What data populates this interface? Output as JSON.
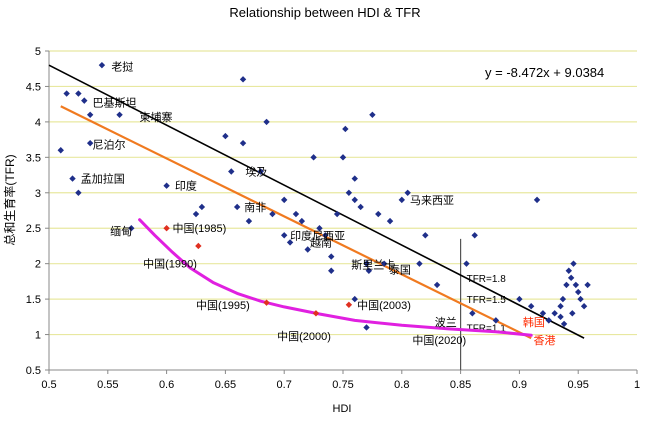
{
  "chart_data": {
    "type": "scatter",
    "title": "Relationship between HDI & TFR",
    "xlabel": "HDI",
    "ylabel": "总和生育率(TFR)",
    "xlim": [
      0.5,
      1.0
    ],
    "ylim": [
      0.5,
      5.0
    ],
    "x_ticks": [
      "0.5",
      "0.55",
      "0.6",
      "0.65",
      "0.7",
      "0.75",
      "0.8",
      "0.85",
      "0.9",
      "0.95",
      "1"
    ],
    "y_ticks": [
      "0.5",
      "1",
      "1.5",
      "2",
      "2.5",
      "3",
      "3.5",
      "4",
      "4.5",
      "5"
    ],
    "grid": "horizontal",
    "colors": {
      "country_points": "#1f2f8a",
      "china_points": "#e03020",
      "trend_line": "#000000",
      "fit_line": "#f07a20",
      "china_curve": "#e020e0",
      "grid": "#e8e8a0",
      "threshold": "#555555",
      "highlight_label": "#ff2a00"
    },
    "equation": "y = -8.472x + 9.0384",
    "trend_line": {
      "x": [
        0.5,
        0.955
      ],
      "y": [
        4.8,
        0.95
      ]
    },
    "fit_line": {
      "x": [
        0.51,
        0.91
      ],
      "y": [
        4.22,
        0.95
      ]
    },
    "threshold_line": {
      "x": 0.85,
      "labels": [
        "TFR=1.8",
        "TFR=1.5",
        "TFR=1.1"
      ],
      "y": [
        1.8,
        1.5,
        1.1
      ]
    },
    "country_points": [
      [
        0.51,
        3.6
      ],
      [
        0.525,
        4.4
      ],
      [
        0.53,
        4.3
      ],
      [
        0.545,
        4.8
      ],
      [
        0.52,
        3.2
      ],
      [
        0.525,
        3.0
      ],
      [
        0.535,
        3.7
      ],
      [
        0.515,
        4.4
      ],
      [
        0.535,
        4.1
      ],
      [
        0.56,
        4.1
      ],
      [
        0.57,
        2.5
      ],
      [
        0.6,
        3.1
      ],
      [
        0.625,
        2.7
      ],
      [
        0.63,
        2.8
      ],
      [
        0.65,
        3.8
      ],
      [
        0.655,
        3.3
      ],
      [
        0.66,
        2.8
      ],
      [
        0.665,
        3.7
      ],
      [
        0.665,
        4.6
      ],
      [
        0.67,
        2.6
      ],
      [
        0.68,
        3.3
      ],
      [
        0.685,
        4.0
      ],
      [
        0.69,
        2.7
      ],
      [
        0.7,
        2.4
      ],
      [
        0.705,
        2.3
      ],
      [
        0.71,
        2.7
      ],
      [
        0.715,
        2.6
      ],
      [
        0.72,
        2.2
      ],
      [
        0.725,
        3.5
      ],
      [
        0.73,
        2.5
      ],
      [
        0.735,
        2.4
      ],
      [
        0.74,
        2.1
      ],
      [
        0.745,
        2.7
      ],
      [
        0.75,
        3.5
      ],
      [
        0.752,
        3.9
      ],
      [
        0.755,
        3.0
      ],
      [
        0.76,
        2.9
      ],
      [
        0.765,
        2.8
      ],
      [
        0.77,
        2.0
      ],
      [
        0.772,
        1.9
      ],
      [
        0.775,
        4.1
      ],
      [
        0.78,
        2.7
      ],
      [
        0.785,
        2.0
      ],
      [
        0.79,
        2.6
      ],
      [
        0.8,
        2.9
      ],
      [
        0.805,
        3.0
      ],
      [
        0.815,
        2.0
      ],
      [
        0.82,
        2.4
      ],
      [
        0.83,
        1.7
      ],
      [
        0.855,
        2.0
      ],
      [
        0.86,
        1.3
      ],
      [
        0.862,
        2.4
      ],
      [
        0.88,
        1.2
      ],
      [
        0.9,
        1.5
      ],
      [
        0.91,
        1.4
      ],
      [
        0.915,
        2.9
      ],
      [
        0.92,
        1.3
      ],
      [
        0.925,
        1.2
      ],
      [
        0.93,
        1.3
      ],
      [
        0.935,
        1.4
      ],
      [
        0.937,
        1.5
      ],
      [
        0.94,
        1.7
      ],
      [
        0.942,
        1.9
      ],
      [
        0.944,
        1.8
      ],
      [
        0.946,
        2.0
      ],
      [
        0.948,
        1.7
      ],
      [
        0.95,
        1.6
      ],
      [
        0.952,
        1.5
      ],
      [
        0.955,
        1.4
      ],
      [
        0.958,
        1.7
      ],
      [
        0.945,
        1.3
      ],
      [
        0.938,
        1.15
      ],
      [
        0.935,
        1.25
      ],
      [
        0.77,
        1.1
      ],
      [
        0.74,
        1.9
      ],
      [
        0.7,
        2.9
      ],
      [
        0.76,
        1.5
      ],
      [
        0.76,
        3.2
      ]
    ],
    "china_points": [
      {
        "label": "中国(1985)",
        "x": 0.6,
        "y": 2.5
      },
      {
        "label": "中国(1990)",
        "x": 0.627,
        "y": 2.25
      },
      {
        "label": "中国(1995)",
        "x": 0.685,
        "y": 1.45
      },
      {
        "label": "中国(2000)",
        "x": 0.727,
        "y": 1.3
      },
      {
        "label": "中国(2003)",
        "x": 0.755,
        "y": 1.42
      }
    ],
    "china_curve": {
      "x": [
        0.577,
        0.59,
        0.605,
        0.62,
        0.64,
        0.66,
        0.68,
        0.7,
        0.73,
        0.76,
        0.8,
        0.84,
        0.88,
        0.91
      ],
      "y": [
        2.62,
        2.4,
        2.16,
        1.94,
        1.73,
        1.58,
        1.47,
        1.39,
        1.29,
        1.2,
        1.13,
        1.08,
        1.04,
        0.99
      ]
    },
    "annotations": [
      {
        "text": "老挝",
        "x": 0.553,
        "y": 4.78,
        "color": "#000000"
      },
      {
        "text": "巴基斯坦",
        "x": 0.537,
        "y": 4.27,
        "color": "#000000"
      },
      {
        "text": "柬埔寨",
        "x": 0.577,
        "y": 4.07,
        "color": "#000000"
      },
      {
        "text": "尼泊尔",
        "x": 0.537,
        "y": 3.68,
        "color": "#000000"
      },
      {
        "text": "孟加拉国",
        "x": 0.527,
        "y": 3.2,
        "color": "#000000"
      },
      {
        "text": "印度",
        "x": 0.607,
        "y": 3.1,
        "color": "#000000"
      },
      {
        "text": "埃及",
        "x": 0.667,
        "y": 3.3,
        "color": "#000000"
      },
      {
        "text": "南非",
        "x": 0.666,
        "y": 2.8,
        "color": "#000000"
      },
      {
        "text": "缅甸",
        "x": 0.552,
        "y": 2.46,
        "color": "#000000"
      },
      {
        "text": "中国(1985)",
        "x": 0.605,
        "y": 2.5,
        "color": "#000000"
      },
      {
        "text": "中国(1990)",
        "x": 0.58,
        "y": 2.0,
        "color": "#000000"
      },
      {
        "text": "印度尼西亚",
        "x": 0.705,
        "y": 2.4,
        "color": "#000000"
      },
      {
        "text": "越南",
        "x": 0.722,
        "y": 2.3,
        "color": "#000000"
      },
      {
        "text": "马来西亚",
        "x": 0.807,
        "y": 2.9,
        "color": "#000000"
      },
      {
        "text": "斯里兰卡",
        "x": 0.757,
        "y": 1.99,
        "color": "#000000"
      },
      {
        "text": "泰国",
        "x": 0.789,
        "y": 1.92,
        "color": "#000000"
      },
      {
        "text": "中国(1995)",
        "x": 0.625,
        "y": 1.42,
        "color": "#000000"
      },
      {
        "text": "中国(2003)",
        "x": 0.762,
        "y": 1.42,
        "color": "#000000"
      },
      {
        "text": "中国(2000)",
        "x": 0.694,
        "y": 0.98,
        "color": "#000000"
      },
      {
        "text": "波兰",
        "x": 0.828,
        "y": 1.18,
        "color": "#000000"
      },
      {
        "text": "中国(2020)",
        "x": 0.809,
        "y": 0.92,
        "color": "#000000"
      },
      {
        "text": "韩国",
        "x": 0.903,
        "y": 1.18,
        "color": "#ff2a00"
      },
      {
        "text": "香港",
        "x": 0.912,
        "y": 0.92,
        "color": "#ff2a00"
      }
    ]
  }
}
